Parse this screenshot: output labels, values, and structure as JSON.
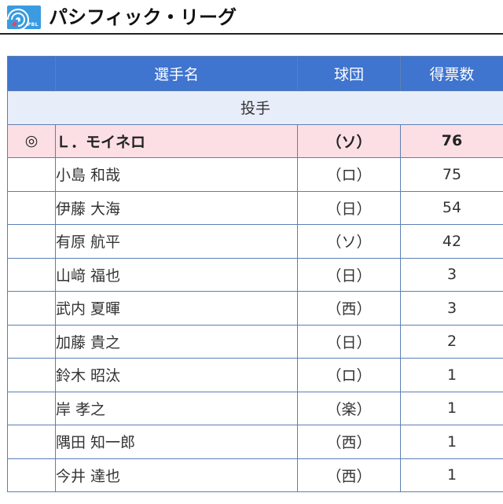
{
  "header": {
    "logo_text": "PBL",
    "title": "パシフィック・リーグ"
  },
  "table": {
    "columns": {
      "mark": "",
      "player": "選手名",
      "team": "球団",
      "votes": "得票数"
    },
    "section_label": "投手",
    "rows": [
      {
        "mark": "◎",
        "player": "Ｌ．モイネロ",
        "team": "（ソ）",
        "votes": "76"
      },
      {
        "mark": "",
        "player": "小島 和哉",
        "team": "（ロ）",
        "votes": "75"
      },
      {
        "mark": "",
        "player": "伊藤 大海",
        "team": "（日）",
        "votes": "54"
      },
      {
        "mark": "",
        "player": "有原 航平",
        "team": "（ソ）",
        "votes": "42"
      },
      {
        "mark": "",
        "player": "山﨑 福也",
        "team": "（日）",
        "votes": "3"
      },
      {
        "mark": "",
        "player": "武内 夏暉",
        "team": "（西）",
        "votes": "3"
      },
      {
        "mark": "",
        "player": "加藤 貴之",
        "team": "（日）",
        "votes": "2"
      },
      {
        "mark": "",
        "player": "鈴木 昭汰",
        "team": "（ロ）",
        "votes": "1"
      },
      {
        "mark": "",
        "player": "岸 孝之",
        "team": "（楽）",
        "votes": "1"
      },
      {
        "mark": "",
        "player": "隅田 知一郎",
        "team": "（西）",
        "votes": "1"
      },
      {
        "mark": "",
        "player": "今井 達也",
        "team": "（西）",
        "votes": "1"
      }
    ]
  },
  "colors": {
    "header_blue": "#3f74cf",
    "section_bg": "#e8eef9",
    "winner_bg": "#fbdfe4",
    "border": "#5b7fb4"
  }
}
